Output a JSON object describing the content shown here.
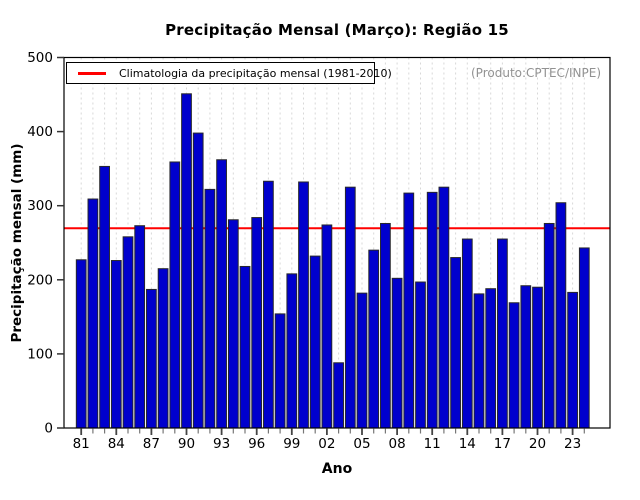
{
  "chart_data": {
    "type": "bar",
    "title": "Precipitação Mensal (Março): Região 15",
    "xlabel": "Ano",
    "ylabel": "Precipitação mensal (mm)",
    "ylim": [
      0,
      500
    ],
    "yticks": [
      0,
      100,
      200,
      300,
      400,
      500
    ],
    "xtick_label_every": 3,
    "xtick_labels_shown": [
      "81",
      "84",
      "87",
      "90",
      "93",
      "96",
      "99",
      "02",
      "05",
      "08",
      "11",
      "14",
      "17",
      "20",
      "23"
    ],
    "categories": [
      "81",
      "82",
      "83",
      "84",
      "85",
      "86",
      "87",
      "88",
      "89",
      "90",
      "91",
      "92",
      "93",
      "94",
      "95",
      "96",
      "97",
      "98",
      "99",
      "00",
      "01",
      "02",
      "03",
      "04",
      "05",
      "06",
      "07",
      "08",
      "09",
      "10",
      "11",
      "12",
      "13",
      "14",
      "15",
      "16",
      "17",
      "18",
      "19",
      "20",
      "21",
      "22",
      "23",
      "24"
    ],
    "values": [
      227,
      309,
      353,
      226,
      258,
      273,
      187,
      215,
      359,
      451,
      398,
      322,
      362,
      281,
      218,
      284,
      333,
      154,
      208,
      332,
      232,
      274,
      88,
      325,
      182,
      240,
      276,
      202,
      317,
      197,
      318,
      325,
      230,
      255,
      181,
      188,
      255,
      169,
      192,
      190,
      276,
      304,
      183,
      243
    ],
    "climatology_value": 269.5,
    "climatology_label": "Climatologia da precipitação mensal (1981-2010)",
    "annotation": "(Produto:CPTEC/INPE)",
    "legend_position": "top-left",
    "grid": "vertical-dashed",
    "grid_color": "#d8d8d8",
    "bar_color": "#0000cd",
    "bar_border": "#26262b",
    "line_color": "#ff0000",
    "annotation_color": "#929292"
  }
}
